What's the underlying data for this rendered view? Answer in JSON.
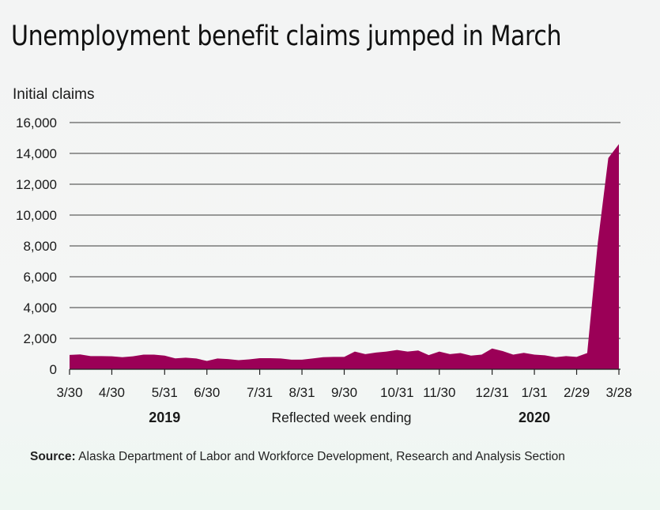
{
  "chart_data": {
    "type": "area",
    "title": "Unemployment benefit claims jumped in March",
    "ylabel": "Initial claims",
    "xlabel": "Reflected week ending",
    "ylim": [
      0,
      16000
    ],
    "y_ticks": [
      0,
      2000,
      4000,
      6000,
      8000,
      10000,
      12000,
      14000,
      16000
    ],
    "y_tick_labels": [
      "0",
      "2,000",
      "4,000",
      "6,000",
      "8,000",
      "10,000",
      "12,000",
      "14,000",
      "16,000"
    ],
    "x_tick_labels": [
      "3/30",
      "4/30",
      "5/31",
      "6/30",
      "7/31",
      "8/31",
      "9/30",
      "10/31",
      "11/30",
      "12/31",
      "1/31",
      "2/29",
      "3/28"
    ],
    "x_tick_week_index": [
      0,
      4,
      9,
      13,
      18,
      22,
      26,
      31,
      35,
      40,
      44,
      48,
      52
    ],
    "year_labels": [
      {
        "text": "2019",
        "week_index": 9
      },
      {
        "text": "2020",
        "week_index": 44
      }
    ],
    "series": [
      {
        "name": "Initial claims",
        "color": "#9b0057",
        "values": [
          930,
          960,
          850,
          850,
          840,
          780,
          840,
          950,
          950,
          880,
          710,
          750,
          700,
          540,
          700,
          660,
          590,
          640,
          720,
          720,
          700,
          620,
          620,
          700,
          780,
          800,
          800,
          1150,
          980,
          1080,
          1150,
          1250,
          1150,
          1220,
          920,
          1150,
          980,
          1050,
          880,
          950,
          1350,
          1180,
          950,
          1060,
          950,
          900,
          780,
          850,
          800,
          1050,
          8200,
          13700,
          14600
        ]
      }
    ]
  },
  "source": {
    "label": "Source:",
    "text": " Alaska Department of Labor and Workforce Development, Research and Analysis Section"
  }
}
